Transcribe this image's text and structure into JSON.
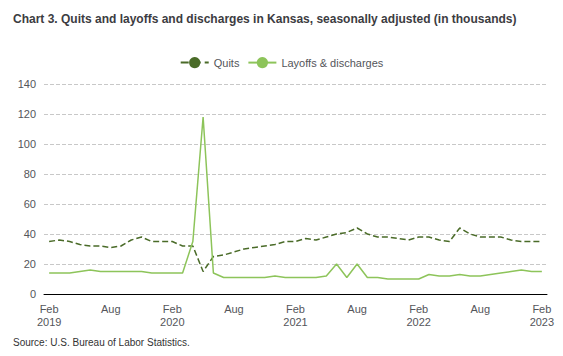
{
  "chart_data": {
    "type": "line",
    "title": "Chart 3. Quits and layoffs and discharges in Kansas, seasonally adjusted (in thousands)",
    "source": "Source: U.S. Bureau of Labor Statistics.",
    "categories": [
      "Feb\n2019",
      null,
      null,
      null,
      null,
      null,
      "Aug",
      null,
      null,
      null,
      null,
      null,
      "Feb\n2020",
      null,
      null,
      null,
      null,
      null,
      "Aug",
      null,
      null,
      null,
      null,
      null,
      "Feb\n2021",
      null,
      null,
      null,
      null,
      null,
      "Aug",
      null,
      null,
      null,
      null,
      null,
      "Feb\n2022",
      null,
      null,
      null,
      null,
      null,
      "Aug",
      null,
      null,
      null,
      null,
      null,
      "Feb\n2023"
    ],
    "series": [
      {
        "name": "Quits",
        "color": "#4a6b28",
        "line_style": "dashed",
        "values": [
          35,
          36,
          35,
          33,
          32,
          32,
          31,
          32,
          36,
          38,
          35,
          35,
          35,
          32,
          32,
          15,
          25,
          26,
          28,
          30,
          31,
          32,
          33,
          35,
          35,
          37,
          36,
          38,
          40,
          41,
          44,
          40,
          38,
          38,
          37,
          36,
          38,
          38,
          36,
          35,
          44,
          40,
          38,
          38,
          38,
          36,
          35,
          35,
          35
        ]
      },
      {
        "name": "Layoffs & discharges",
        "color": "#8dc45a",
        "line_style": "solid",
        "values": [
          14,
          14,
          14,
          15,
          16,
          15,
          15,
          15,
          15,
          15,
          14,
          14,
          14,
          14,
          35,
          118,
          14,
          11,
          11,
          11,
          11,
          11,
          12,
          11,
          11,
          11,
          11,
          12,
          20,
          11,
          20,
          11,
          11,
          10,
          10,
          10,
          10,
          13,
          12,
          12,
          13,
          12,
          12,
          13,
          14,
          15,
          16,
          15,
          15
        ]
      }
    ],
    "ylim": [
      0,
      140
    ],
    "yticks": [
      0,
      20,
      40,
      60,
      80,
      100,
      120,
      140
    ],
    "grid": true,
    "legend": "top"
  }
}
